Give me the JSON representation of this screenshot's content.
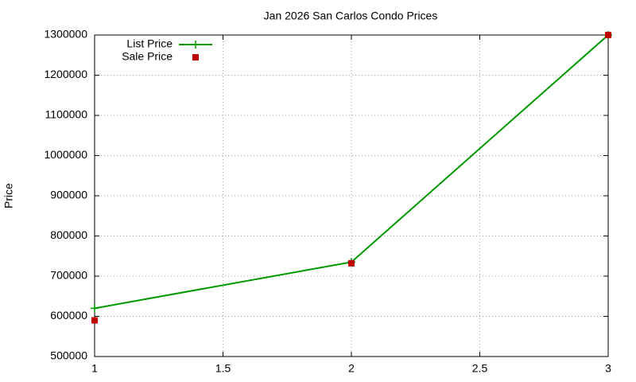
{
  "chart_data": {
    "type": "line",
    "title": "Jan 2026 San Carlos Condo Prices",
    "y_label": "Price",
    "x": [
      1,
      2,
      3
    ],
    "series": [
      {
        "name": "List Price",
        "color": "#009900",
        "style": "linespoints",
        "values": [
          620000,
          735000,
          1300000
        ]
      },
      {
        "name": "Sale Price",
        "color": "#c00000",
        "style": "points",
        "values": [
          590000,
          732000,
          1300000
        ]
      }
    ],
    "xlim": [
      1,
      3
    ],
    "xticks": [
      1,
      1.5,
      2,
      2.5,
      3
    ],
    "ylim": [
      500000,
      1300000
    ],
    "yticks": [
      500000,
      600000,
      700000,
      800000,
      900000,
      1000000,
      1100000,
      1200000,
      1300000
    ],
    "grid": true,
    "legend": "top-left"
  }
}
